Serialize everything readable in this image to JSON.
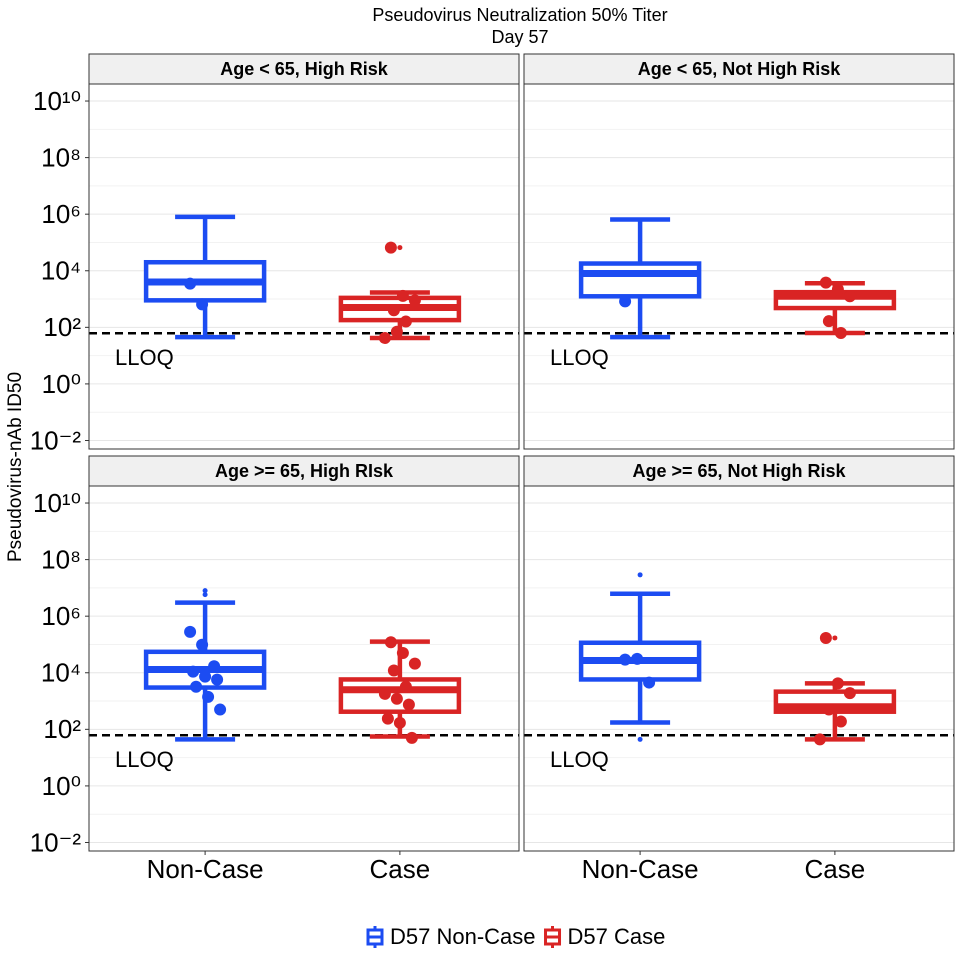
{
  "chart_data": {
    "type": "box",
    "title": "Pseudovirus Neutralization 50% Titer",
    "subtitle": "Day 57",
    "y_label": "Pseudovirus-nAb ID50",
    "log_scale": true,
    "grid": true,
    "ylim": [
      0.005,
      40000000000
    ],
    "yticks": [
      {
        "value": 0.01,
        "label": "10⁻²"
      },
      {
        "value": 1,
        "label": "10⁰"
      },
      {
        "value": 100,
        "label": "10²"
      },
      {
        "value": 10000,
        "label": "10⁴"
      },
      {
        "value": 1000000,
        "label": "10⁶"
      },
      {
        "value": 100000000,
        "label": "10⁸"
      },
      {
        "value": 10000000000,
        "label": "10¹⁰"
      }
    ],
    "lloq": {
      "value": 62,
      "label": "LLOQ"
    },
    "categories": [
      "Non-Case",
      "Case"
    ],
    "legend": "bottom",
    "series": [
      {
        "name": "D57 Non-Case",
        "color": "#1c4cf2"
      },
      {
        "name": "D57 Case",
        "color": "#d92424"
      }
    ],
    "facets": [
      {
        "title": "Age < 65, High Risk",
        "boxes": [
          {
            "whisker_low": 45,
            "q1": 900,
            "median": 4000,
            "q3": 20000,
            "whisker_high": 800000,
            "points": [
              3500,
              650
            ],
            "outliers": []
          },
          {
            "whisker_low": 42,
            "q1": 180,
            "median": 500,
            "q3": 1100,
            "whisker_high": 1700,
            "points": [
              66000,
              1300,
              900,
              400,
              160,
              42,
              70
            ],
            "outliers": [
              66000
            ]
          }
        ]
      },
      {
        "title": "Age < 65, Not High Risk",
        "boxes": [
          {
            "whisker_low": 45,
            "q1": 1250,
            "median": 8000,
            "q3": 18000,
            "whisker_high": 650000,
            "points": [
              830
            ],
            "outliers": []
          },
          {
            "whisker_low": 63,
            "q1": 480,
            "median": 1250,
            "q3": 1750,
            "whisker_high": 3600,
            "points": [
              3800,
              2200,
              1250,
              165,
              63
            ],
            "outliers": []
          }
        ]
      },
      {
        "title": "Age >= 65, High RIsk",
        "boxes": [
          {
            "whisker_low": 44,
            "q1": 3000,
            "median": 13000,
            "q3": 55000,
            "whisker_high": 3000000,
            "points": [
              280000,
              98000,
              17000,
              11000,
              7300,
              5700,
              3200,
              1400,
              500
            ],
            "outliers": [
              8000000,
              5800000
            ]
          },
          {
            "whisker_low": 56,
            "q1": 420,
            "median": 2500,
            "q3": 5800,
            "whisker_high": 126000,
            "points": [
              120000,
              50000,
              21000,
              12000,
              3200,
              1800,
              1200,
              750,
              240,
              170,
              50
            ],
            "outliers": []
          }
        ]
      },
      {
        "title": "Age >= 65, Not High Risk",
        "boxes": [
          {
            "whisker_low": 175,
            "q1": 5800,
            "median": 27000,
            "q3": 115000,
            "whisker_high": 6200000,
            "points": [
              29000,
              31000,
              4500
            ],
            "outliers": [
              29000000,
              44
            ]
          },
          {
            "whisker_low": 44,
            "q1": 420,
            "median": 630,
            "q3": 2150,
            "whisker_high": 4200,
            "points": [
              170000,
              4200,
              1900,
              500,
              190,
              44
            ],
            "outliers": [
              170000
            ]
          }
        ]
      }
    ]
  }
}
